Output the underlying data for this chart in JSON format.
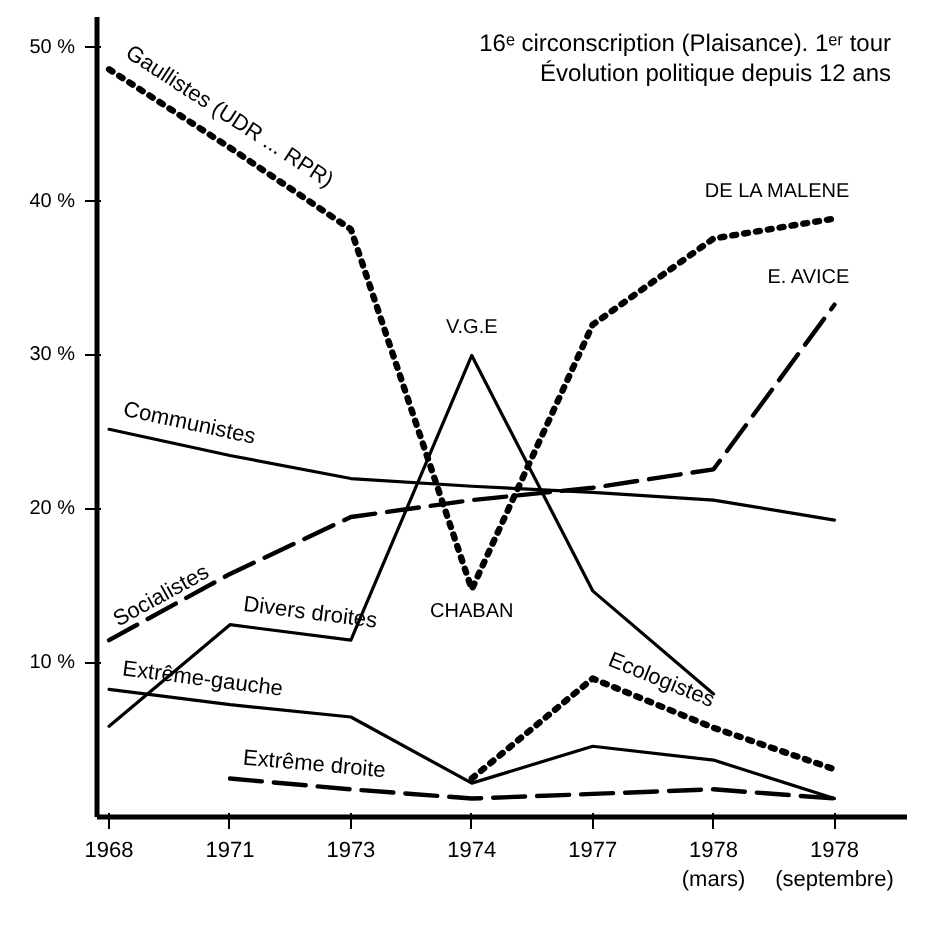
{
  "chart_data": {
    "type": "line",
    "title": "16ᵉ circonscription (Plaisance). 1ᵉʳ tour",
    "subtitle": "Évolution politique depuis 12 ans",
    "categories": [
      "1968",
      "1971",
      "1973",
      "1974",
      "1977",
      "1978\n(mars)",
      "1978\n(septembre)"
    ],
    "ylim": [
      0,
      52
    ],
    "yticks": [
      {
        "value": 10,
        "label": "10 %"
      },
      {
        "value": 20,
        "label": "20 %"
      },
      {
        "value": 30,
        "label": "30 %"
      },
      {
        "value": 40,
        "label": "40 %"
      },
      {
        "value": 50,
        "label": "50 %"
      }
    ],
    "series": [
      {
        "name": "Gaullistes (UDR ... RPR)",
        "color": "#000000",
        "line_style": "dotted",
        "values": [
          48.6,
          43.5,
          38.2,
          14.8,
          32,
          37.6,
          38.9
        ]
      },
      {
        "name": "Communistes",
        "color": "#000000",
        "line_style": "solid",
        "values": [
          25.2,
          23.5,
          22.0,
          21.5,
          21.1,
          20.6,
          19.3
        ]
      },
      {
        "name": "Socialistes",
        "color": "#000000",
        "line_style": "dashed",
        "values": [
          11.5,
          15.8,
          19.5,
          20.6,
          21.4,
          22.6,
          33.3
        ]
      },
      {
        "name": "Divers droites",
        "color": "#000000",
        "line_style": "solid",
        "values": [
          5.9,
          12.5,
          11.5,
          30.0,
          14.7,
          8.0,
          null
        ]
      },
      {
        "name": "Extrême-gauche",
        "color": "#000000",
        "line_style": "solid",
        "values": [
          8.3,
          7.3,
          6.5,
          2.2,
          4.6,
          3.7,
          1.2
        ]
      },
      {
        "name": "Ecologistes",
        "color": "#000000",
        "line_style": "dotted",
        "values": [
          null,
          null,
          null,
          2.5,
          9.0,
          5.8,
          3.1
        ]
      },
      {
        "name": "Extrême droite",
        "color": "#000000",
        "line_style": "dashed",
        "values": [
          null,
          2.5,
          1.8,
          1.2,
          1.5,
          1.8,
          1.2
        ]
      }
    ],
    "annotations": [
      {
        "text": "V.G.E",
        "x": "1974",
        "y": 30.0
      },
      {
        "text": "CHABAN",
        "x": "1974",
        "y": 14.8
      },
      {
        "text": "DE LA MALENE",
        "x": "1978\n(septembre)",
        "y": 38.9
      },
      {
        "text": "E. AVICE",
        "x": "1978\n(septembre)",
        "y": 33.3
      }
    ]
  }
}
